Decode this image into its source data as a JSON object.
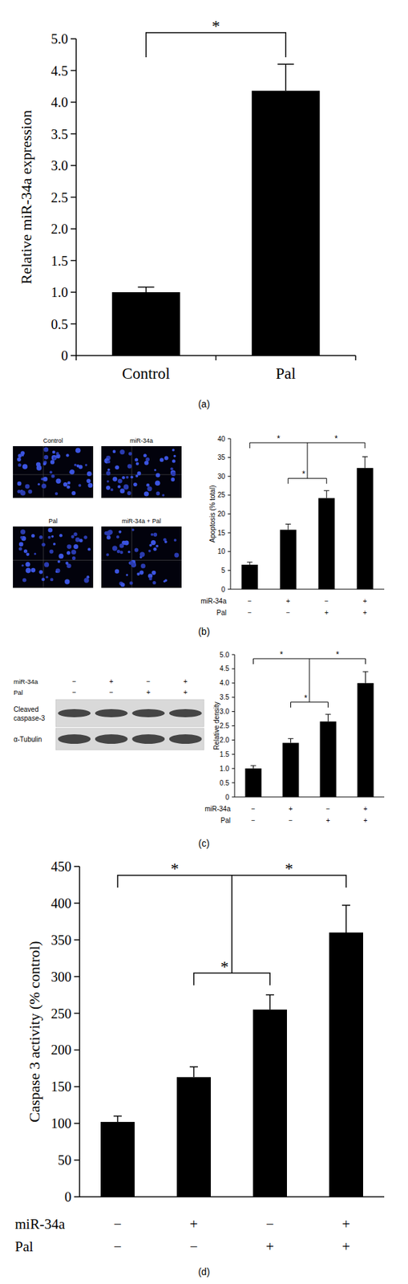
{
  "chart_data": [
    {
      "type": "bar",
      "panel_label": "(a)",
      "ylabel": "Relative miR-34a expression",
      "categories": [
        "Control",
        "Pal"
      ],
      "values": [
        1.0,
        4.18
      ],
      "errors": [
        0.08,
        0.42
      ],
      "color": "#000000",
      "ylim": [
        0,
        5
      ],
      "yticks": [
        0,
        0.5,
        {
          "value": 1,
          "label": "1.0"
        },
        1.5,
        {
          "value": 2,
          "label": "2.0"
        },
        2.5,
        {
          "value": 3,
          "label": "3.0"
        },
        3.5,
        {
          "value": 4,
          "label": "4.0"
        },
        4.5,
        {
          "value": 5,
          "label": "5.0"
        }
      ],
      "grid": false,
      "significance": [
        {
          "span": [
            0,
            1
          ],
          "labels": [
            "*"
          ]
        }
      ]
    },
    {
      "type": "bar",
      "panel_label": "(b)",
      "images": [
        "Control",
        "miR-34a",
        "Pal",
        "miR-34a + Pal"
      ],
      "ylabel": "Apoptosis (% total)",
      "categories": [
        null,
        null,
        null,
        null
      ],
      "conditions": [
        {
          "name": "miR-34a",
          "values": [
            "−",
            "+",
            "−",
            "+"
          ]
        },
        {
          "name": "Pal",
          "values": [
            "−",
            "−",
            "+",
            "+"
          ]
        }
      ],
      "values": [
        6.5,
        15.8,
        24.2,
        32.2
      ],
      "errors": [
        0.7,
        1.5,
        2.0,
        3.0
      ],
      "color": "#000000",
      "ylim": [
        0,
        40
      ],
      "yticks": [
        0,
        5,
        10,
        15,
        20,
        25,
        30,
        35,
        40
      ],
      "grid": false,
      "significance": [
        {
          "span": [
            0,
            3
          ],
          "labels": [
            "*",
            "*"
          ]
        },
        {
          "span": [
            1,
            2
          ],
          "labels": [
            "*"
          ]
        }
      ]
    },
    {
      "type": "bar",
      "panel_label": "(c)",
      "blot": {
        "conditions": [
          {
            "name": "miR-34a",
            "values": [
              "−",
              "+",
              "−",
              "+"
            ]
          },
          {
            "name": "Pal",
            "values": [
              "−",
              "−",
              "+",
              "+"
            ]
          }
        ],
        "rows": [
          [
            "Cleaved",
            "caspase-3"
          ],
          [
            "α-Tubulin"
          ]
        ]
      },
      "ylabel": "Relative density",
      "categories": [
        null,
        null,
        null,
        null
      ],
      "conditions": [
        {
          "name": "miR-34a",
          "values": [
            "−",
            "+",
            "−",
            "+"
          ]
        },
        {
          "name": "Pal",
          "values": [
            "−",
            "−",
            "+",
            "+"
          ]
        }
      ],
      "values": [
        1.0,
        1.9,
        2.65,
        4.0
      ],
      "errors": [
        0.1,
        0.15,
        0.25,
        0.4
      ],
      "color": "#000000",
      "ylim": [
        0,
        5
      ],
      "yticks": [
        0,
        0.5,
        {
          "value": 1,
          "label": "1.0"
        },
        1.5,
        {
          "value": 2,
          "label": "2.0"
        },
        2.5,
        {
          "value": 3,
          "label": "3.0"
        },
        3.5,
        {
          "value": 4,
          "label": "4.0"
        },
        4.5,
        {
          "value": 5,
          "label": "5.0"
        }
      ],
      "grid": false,
      "significance": [
        {
          "span": [
            0,
            3
          ],
          "labels": [
            "*",
            "*"
          ]
        },
        {
          "span": [
            1,
            2
          ],
          "labels": [
            "*"
          ]
        }
      ]
    },
    {
      "type": "bar",
      "panel_label": "(d)",
      "ylabel": "Caspase 3 activity (% control)",
      "categories": [
        null,
        null,
        null,
        null
      ],
      "conditions": [
        {
          "name": "miR-34a",
          "values": [
            "−",
            "+",
            "−",
            "+"
          ]
        },
        {
          "name": "Pal",
          "values": [
            "−",
            "−",
            "+",
            "+"
          ]
        }
      ],
      "values": [
        102,
        163,
        255,
        360
      ],
      "errors": [
        8,
        14,
        20,
        37
      ],
      "color": "#000000",
      "ylim": [
        0,
        450
      ],
      "yticks": [
        0,
        50,
        100,
        150,
        200,
        250,
        300,
        350,
        400,
        450
      ],
      "grid": false,
      "significance": [
        {
          "span": [
            0,
            3
          ],
          "labels": [
            "*",
            "*"
          ]
        },
        {
          "span": [
            1,
            2
          ],
          "labels": [
            "*"
          ]
        }
      ]
    }
  ]
}
